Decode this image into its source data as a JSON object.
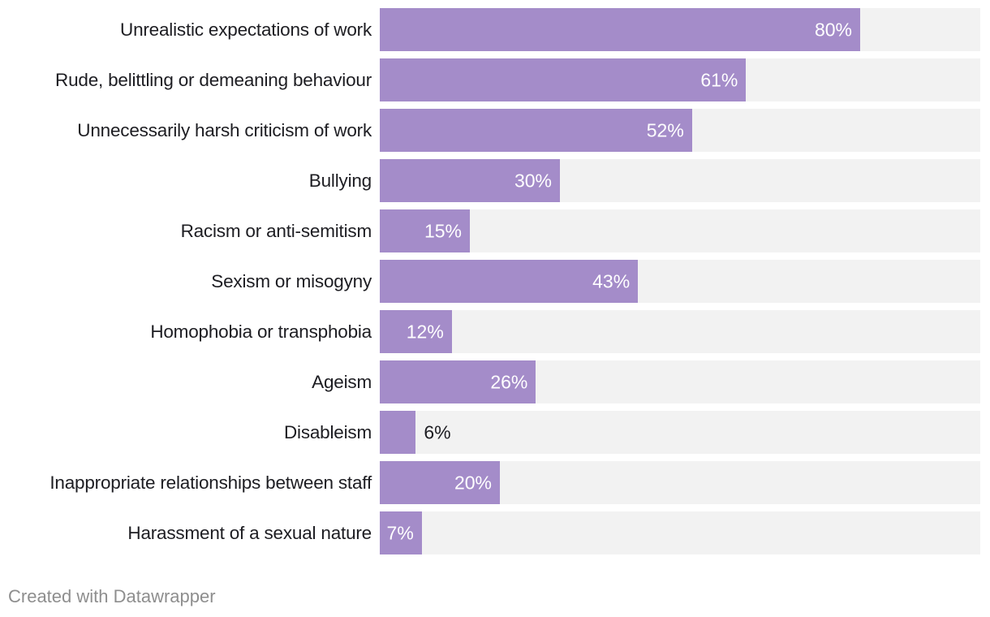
{
  "chart_data": {
    "type": "bar",
    "orientation": "horizontal",
    "title": "",
    "xlabel": "",
    "ylabel": "",
    "xlim": [
      0,
      100
    ],
    "grid": false,
    "legend": false,
    "value_suffix": "%",
    "categories": [
      "Unrealistic expectations of work",
      "Rude, belittling or demeaning behaviour",
      "Unnecessarily harsh criticism of work",
      "Bullying",
      "Racism or anti-semitism",
      "Sexism or misogyny",
      "Homophobia or transphobia",
      "Ageism",
      "Disableism",
      "Inappropriate relationships between staff",
      "Harassment of a sexual nature"
    ],
    "values": [
      80,
      61,
      52,
      30,
      15,
      43,
      12,
      26,
      6,
      20,
      7
    ],
    "display_values": [
      "80%",
      "61%",
      "52%",
      "30%",
      "15%",
      "43%",
      "12%",
      "26%",
      "6%",
      "20%",
      "7%"
    ],
    "colors": {
      "bar": "#a48cc9",
      "track": "#f2f2f2",
      "category_label": "#1d1d22",
      "value_inside": "#ffffff",
      "value_outside": "#1d1d22"
    }
  },
  "footer": {
    "credit": "Created with Datawrapper",
    "color": "#8e8e8e"
  }
}
